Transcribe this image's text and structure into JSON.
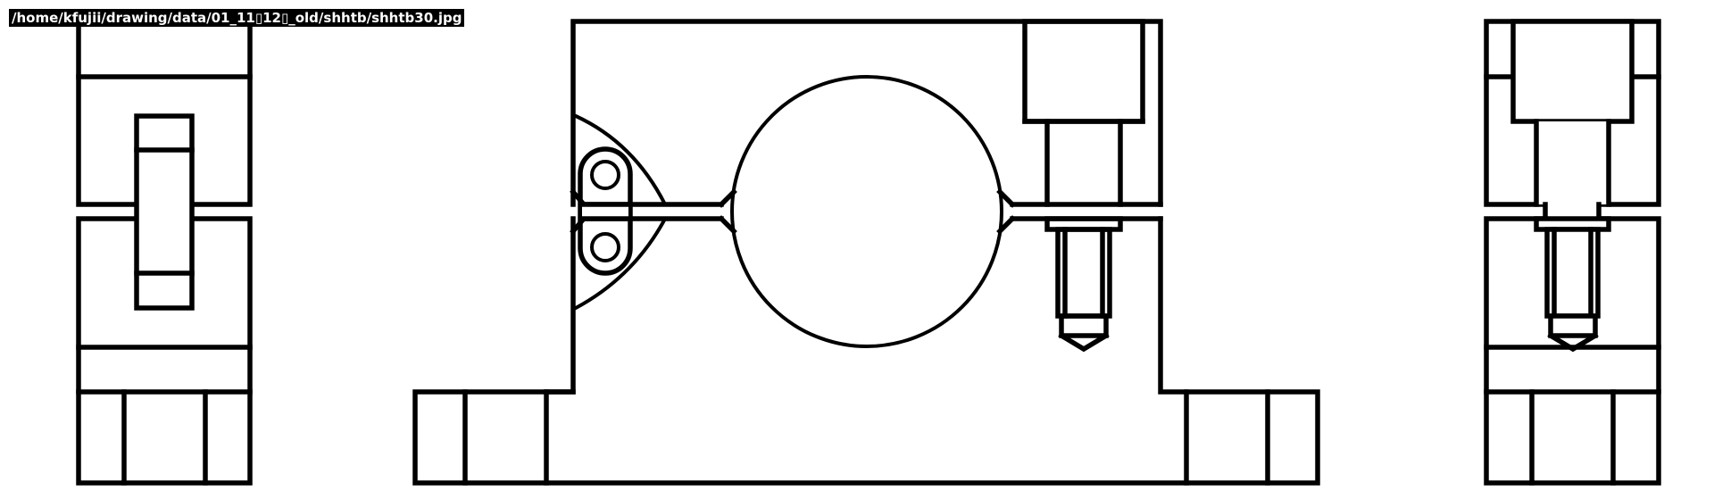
{
  "window": {
    "title": "/home/kfujii/drawing/data/01_11\u0000\u0000\u0000\u000012\u0000\u0000\u0000\u0000_old/shhtb/shhtb30.jpg",
    "title_display": "/home/kfujii/drawing/data/01_11▯12▯_old/shhtb/shhtb30.jpg"
  },
  "drawing": {
    "subject": "pillow block / shaft holder, three orthographic views",
    "views": [
      "side-view-left",
      "front-view",
      "side-view-right"
    ],
    "line_color": "#000000",
    "background_color": "#ffffff"
  }
}
